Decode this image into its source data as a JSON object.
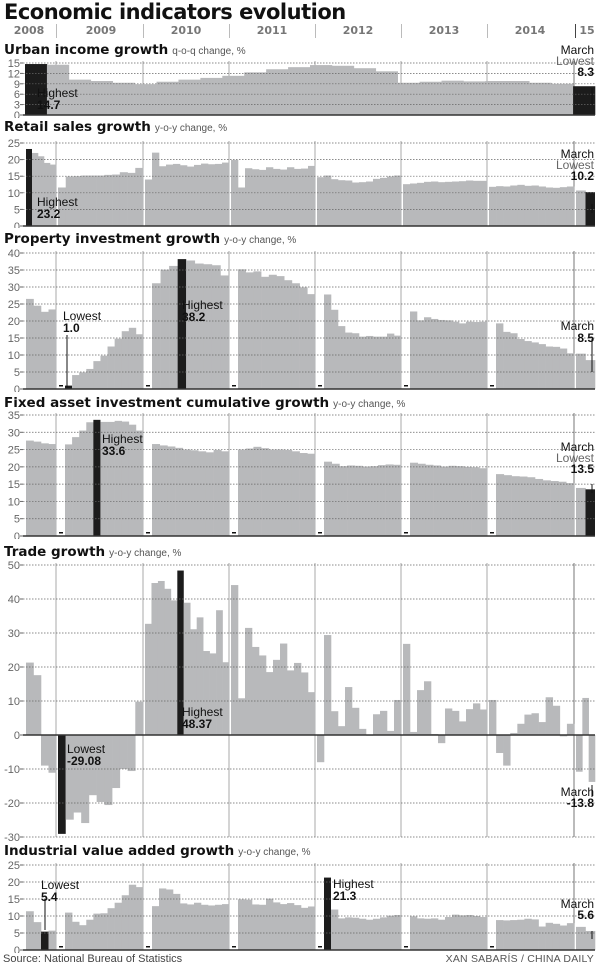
{
  "title": "Economic indicators evolution",
  "years": [
    "2008",
    "2009",
    "2010",
    "2011",
    "2012",
    "2013",
    "2014",
    "15"
  ],
  "source": "Source: National Bureau of Statistics",
  "credit": "XAN SABARÍS / CHINA DAILY",
  "colors": {
    "bar": "#b8b9bb",
    "highlight": "#1c1c1c",
    "grid": "#777777",
    "year_divider": "#999999"
  },
  "panels": {
    "urban": {
      "title": "Urban income growth",
      "subtitle": "q-o-q change, %",
      "hi_label": "Highest",
      "hi_value": "14.7",
      "end_label1": "March",
      "end_label2": "Lowest",
      "end_value": "8.3"
    },
    "retail": {
      "title": "Retail sales growth",
      "subtitle": "y-o-y change, %",
      "hi_label": "Highest",
      "hi_value": "23.2",
      "end_label1": "March",
      "end_label2": "Lowest",
      "end_value": "10.2"
    },
    "property": {
      "title": "Property investment growth",
      "subtitle": "y-o-y change, %",
      "lo_label": "Lowest",
      "lo_value": "1.0",
      "hi_label": "Highest",
      "hi_value": "38.2",
      "end_label1": "March",
      "end_value": "8.5"
    },
    "fixed": {
      "title": "Fixed asset investment cumulative growth",
      "subtitle": "y-o-y change, %",
      "hi_label": "Highest",
      "hi_value": "33.6",
      "end_label1": "March",
      "end_label2": "Lowest",
      "end_value": "13.5"
    },
    "trade": {
      "title": "Trade growth",
      "subtitle": "y-o-y change, %",
      "hi_label": "Highest",
      "hi_value": "48.37",
      "lo_label": "Lowest",
      "lo_value": "-29.08",
      "end_label1": "March",
      "end_value": "-13.8"
    },
    "industrial": {
      "title": "Industrial value added growth",
      "subtitle": "y-o-y change, %",
      "lo_label": "Lowest",
      "lo_value": "5.4",
      "hi_label": "Highest",
      "hi_value": "21.3",
      "end_label1": "March",
      "end_value": "5.6"
    }
  },
  "chart_data": [
    {
      "type": "bar",
      "title": "Urban income growth",
      "ylabel": "q-o-q change, %",
      "yticks": [
        0,
        3,
        6,
        9,
        12,
        15
      ],
      "ylim": [
        0,
        15
      ],
      "x": [
        "2008Q4",
        "2009Q1",
        "2009Q2",
        "2009Q3",
        "2009Q4",
        "2010Q1",
        "2010Q2",
        "2010Q3",
        "2010Q4",
        "2011Q1",
        "2011Q2",
        "2011Q3",
        "2011Q4",
        "2012Q1",
        "2012Q2",
        "2012Q3",
        "2012Q4",
        "2013Q1",
        "2013Q2",
        "2013Q3",
        "2013Q4",
        "2014Q1",
        "2014Q2",
        "2014Q3",
        "2014Q4",
        "2015Q1"
      ],
      "values": [
        14.7,
        14.5,
        10.2,
        9.8,
        9.3,
        8.9,
        9.6,
        10.2,
        10.7,
        11.3,
        12.3,
        13.2,
        13.8,
        14.4,
        14.2,
        13.5,
        12.6,
        9.3,
        9.6,
        9.9,
        9.7,
        9.8,
        9.8,
        9.3,
        9.0,
        8.3
      ],
      "annotations": [
        {
          "label": "Highest",
          "value": 14.7
        },
        {
          "label": "March Lowest",
          "value": 8.3
        }
      ]
    },
    {
      "type": "bar",
      "title": "Retail sales growth",
      "ylabel": "y-o-y change, %",
      "yticks": [
        0,
        5,
        10,
        15,
        20,
        25
      ],
      "ylim": [
        0,
        25
      ],
      "series_note": "monthly, 2008-07 to 2015-03",
      "values_2008": [
        23.2,
        22.0,
        21.0,
        19.0,
        18.5
      ],
      "values_2009": [
        11.6,
        14.9,
        15.0,
        15.2,
        15.2,
        15.2,
        15.4,
        15.5,
        16.2,
        16.0,
        17.5
      ],
      "values_2010": [
        14.0,
        22.1,
        18.0,
        18.5,
        18.7,
        18.3,
        17.9,
        18.4,
        18.8,
        18.6,
        18.7,
        19.1
      ],
      "values_2011": [
        19.9,
        11.6,
        17.4,
        17.1,
        16.9,
        17.7,
        17.2,
        17.0,
        17.7,
        17.2,
        17.3,
        18.1
      ],
      "values_2012": [
        14.7,
        15.2,
        14.1,
        13.8,
        13.7,
        13.1,
        13.2,
        13.4,
        14.2,
        14.5,
        14.9,
        15.2
      ],
      "values_2013": [
        12.6,
        12.8,
        13.0,
        13.3,
        13.4,
        13.2,
        13.3,
        13.4,
        13.5,
        13.7,
        13.6,
        13.6
      ],
      "values_2014": [
        11.8,
        12.0,
        11.9,
        12.2,
        12.4,
        12.1,
        12.2,
        11.9,
        11.6,
        11.5,
        11.7,
        11.9
      ],
      "values_2015": [
        10.7,
        10.2
      ],
      "annotations": [
        {
          "label": "Highest",
          "value": 23.2
        },
        {
          "label": "March Lowest",
          "value": 10.2
        }
      ]
    },
    {
      "type": "bar",
      "title": "Property investment growth",
      "ylabel": "y-o-y change, %",
      "yticks": [
        0,
        5,
        10,
        15,
        20,
        25,
        30,
        35,
        40
      ],
      "ylim": [
        0,
        40
      ],
      "values_2008": [
        26.5,
        24.5,
        22.7,
        23.4
      ],
      "values_2009": [
        1.0,
        4.1,
        4.9,
        5.9,
        8.2,
        9.8,
        12.5,
        14.8,
        17.0,
        18.0,
        16.1
      ],
      "values_2010": [
        31.1,
        35.1,
        36.2,
        38.2,
        37.8,
        36.9,
        36.7,
        36.4,
        33.4
      ],
      "values_2011": [
        35.2,
        34.3,
        34.6,
        33.0,
        33.6,
        33.2,
        32.0,
        31.1,
        29.9,
        27.9
      ],
      "values_2012": [
        27.8,
        23.3,
        18.5,
        16.6,
        16.4,
        15.4,
        15.6,
        15.4,
        15.4,
        16.3,
        15.7
      ],
      "values_2013": [
        22.8,
        20.2,
        21.1,
        20.6,
        20.3,
        20.2,
        19.8,
        19.3,
        19.8,
        19.7,
        19.8
      ],
      "values_2014": [
        19.3,
        16.8,
        16.4,
        14.7,
        14.1,
        13.7,
        13.2,
        12.5,
        12.4,
        11.9,
        10.5
      ],
      "values_2015": [
        10.4,
        8.5
      ],
      "annotations": [
        {
          "label": "Lowest",
          "value": 1.0
        },
        {
          "label": "Highest",
          "value": 38.2
        },
        {
          "label": "March",
          "value": 8.5
        }
      ]
    },
    {
      "type": "bar",
      "title": "Fixed asset investment cumulative growth",
      "ylabel": "y-o-y change, %",
      "yticks": [
        0,
        5,
        10,
        15,
        20,
        25,
        30,
        35
      ],
      "ylim": [
        0,
        35
      ],
      "values_2008": [
        27.6,
        27.3,
        26.8,
        26.6
      ],
      "values_2009": [
        26.5,
        28.6,
        30.5,
        32.9,
        33.6,
        33.0,
        33.0,
        33.3,
        33.1,
        32.2,
        30.5
      ],
      "values_2010": [
        26.6,
        26.2,
        25.9,
        25.5,
        25.0,
        24.8,
        24.5,
        24.2,
        24.9,
        24.5
      ],
      "values_2011": [
        25.0,
        25.3,
        25.8,
        25.4,
        25.0,
        25.0,
        24.9,
        24.5,
        24.0,
        23.8
      ],
      "values_2012": [
        21.5,
        20.9,
        20.2,
        20.4,
        20.3,
        20.1,
        20.2,
        20.5,
        20.7,
        20.6
      ],
      "values_2013": [
        21.2,
        20.9,
        20.6,
        20.4,
        20.1,
        20.3,
        20.2,
        20.0,
        19.9,
        19.6
      ],
      "values_2014": [
        17.9,
        17.6,
        17.3,
        17.2,
        17.0,
        16.5,
        16.1,
        15.9,
        15.7,
        15.3
      ],
      "values_2015": [
        13.9,
        13.5
      ],
      "annotations": [
        {
          "label": "Highest",
          "value": 33.6
        },
        {
          "label": "March Lowest",
          "value": 13.5
        }
      ]
    },
    {
      "type": "bar",
      "title": "Trade growth",
      "ylabel": "y-o-y change, %",
      "yticks": [
        -30,
        -20,
        -10,
        0,
        10,
        20,
        30,
        40,
        50
      ],
      "ylim": [
        -30,
        50
      ],
      "values_2008": [
        21.3,
        17.6,
        -9.0,
        -11.1
      ],
      "values_2009": [
        -29.08,
        -24.9,
        -22.8,
        -25.9,
        -17.7,
        -19.7,
        -20.6,
        -15.6,
        -10.0,
        -10.6,
        9.8
      ],
      "values_2010": [
        32.7,
        44.7,
        45.3,
        43.0,
        39.6,
        48.37,
        38.9,
        31.1,
        34.6,
        24.7,
        24.0,
        36.7,
        21.4
      ],
      "values_2011": [
        44.1,
        10.8,
        31.5,
        25.9,
        23.4,
        18.5,
        22.1,
        26.9,
        19.0,
        21.2,
        18.4,
        12.6
      ],
      "values_2012": [
        -8.0,
        29.4,
        7.0,
        2.6,
        14.1,
        8.0,
        1.8,
        -0.2,
        6.1,
        7.1,
        1.2,
        10.3
      ],
      "values_2013": [
        26.8,
        0.9,
        13.2,
        15.8,
        0.3,
        -2.4,
        7.8,
        7.1,
        4.0,
        7.6,
        9.3,
        7.5
      ],
      "values_2014": [
        10.3,
        -5.3,
        -9.0,
        0.6,
        3.3,
        6.0,
        6.4,
        3.8,
        11.1,
        8.6,
        -0.4,
        3.3
      ],
      "values_2015": [
        -10.8,
        10.9,
        -13.8
      ],
      "annotations": [
        {
          "label": "Highest",
          "value": 48.37
        },
        {
          "label": "Lowest",
          "value": -29.08
        },
        {
          "label": "March",
          "value": -13.8
        }
      ]
    },
    {
      "type": "bar",
      "title": "Industrial value added growth",
      "ylabel": "y-o-y change, %",
      "yticks": [
        0,
        5,
        10,
        15,
        20,
        25
      ],
      "ylim": [
        0,
        25
      ],
      "values_2008": [
        11.4,
        8.2,
        5.4,
        5.7
      ],
      "values_2009": [
        11.0,
        8.3,
        7.3,
        8.9,
        10.7,
        10.8,
        12.3,
        13.9,
        16.1,
        19.2,
        18.5
      ],
      "values_2010": [
        12.9,
        18.1,
        17.8,
        16.5,
        13.7,
        13.4,
        13.9,
        13.3,
        13.1,
        13.3,
        13.5
      ],
      "values_2011": [
        14.9,
        14.8,
        13.4,
        13.3,
        15.1,
        14.0,
        13.5,
        13.8,
        13.2,
        12.4,
        12.8
      ],
      "values_2012": [
        21.3,
        11.9,
        9.3,
        9.6,
        9.5,
        9.2,
        8.9,
        9.2,
        9.6,
        10.1,
        10.3
      ],
      "values_2013": [
        9.9,
        9.3,
        9.2,
        9.3,
        8.9,
        9.7,
        10.4,
        10.2,
        10.3,
        10.0,
        9.7
      ],
      "values_2014": [
        8.8,
        8.7,
        8.8,
        8.9,
        9.2,
        9.0,
        6.9,
        8.0,
        7.7,
        7.2,
        7.9
      ],
      "values_2015": [
        6.8,
        5.6
      ],
      "annotations": [
        {
          "label": "Lowest",
          "value": 5.4
        },
        {
          "label": "Highest",
          "value": 21.3
        },
        {
          "label": "March",
          "value": 5.6
        }
      ]
    }
  ]
}
